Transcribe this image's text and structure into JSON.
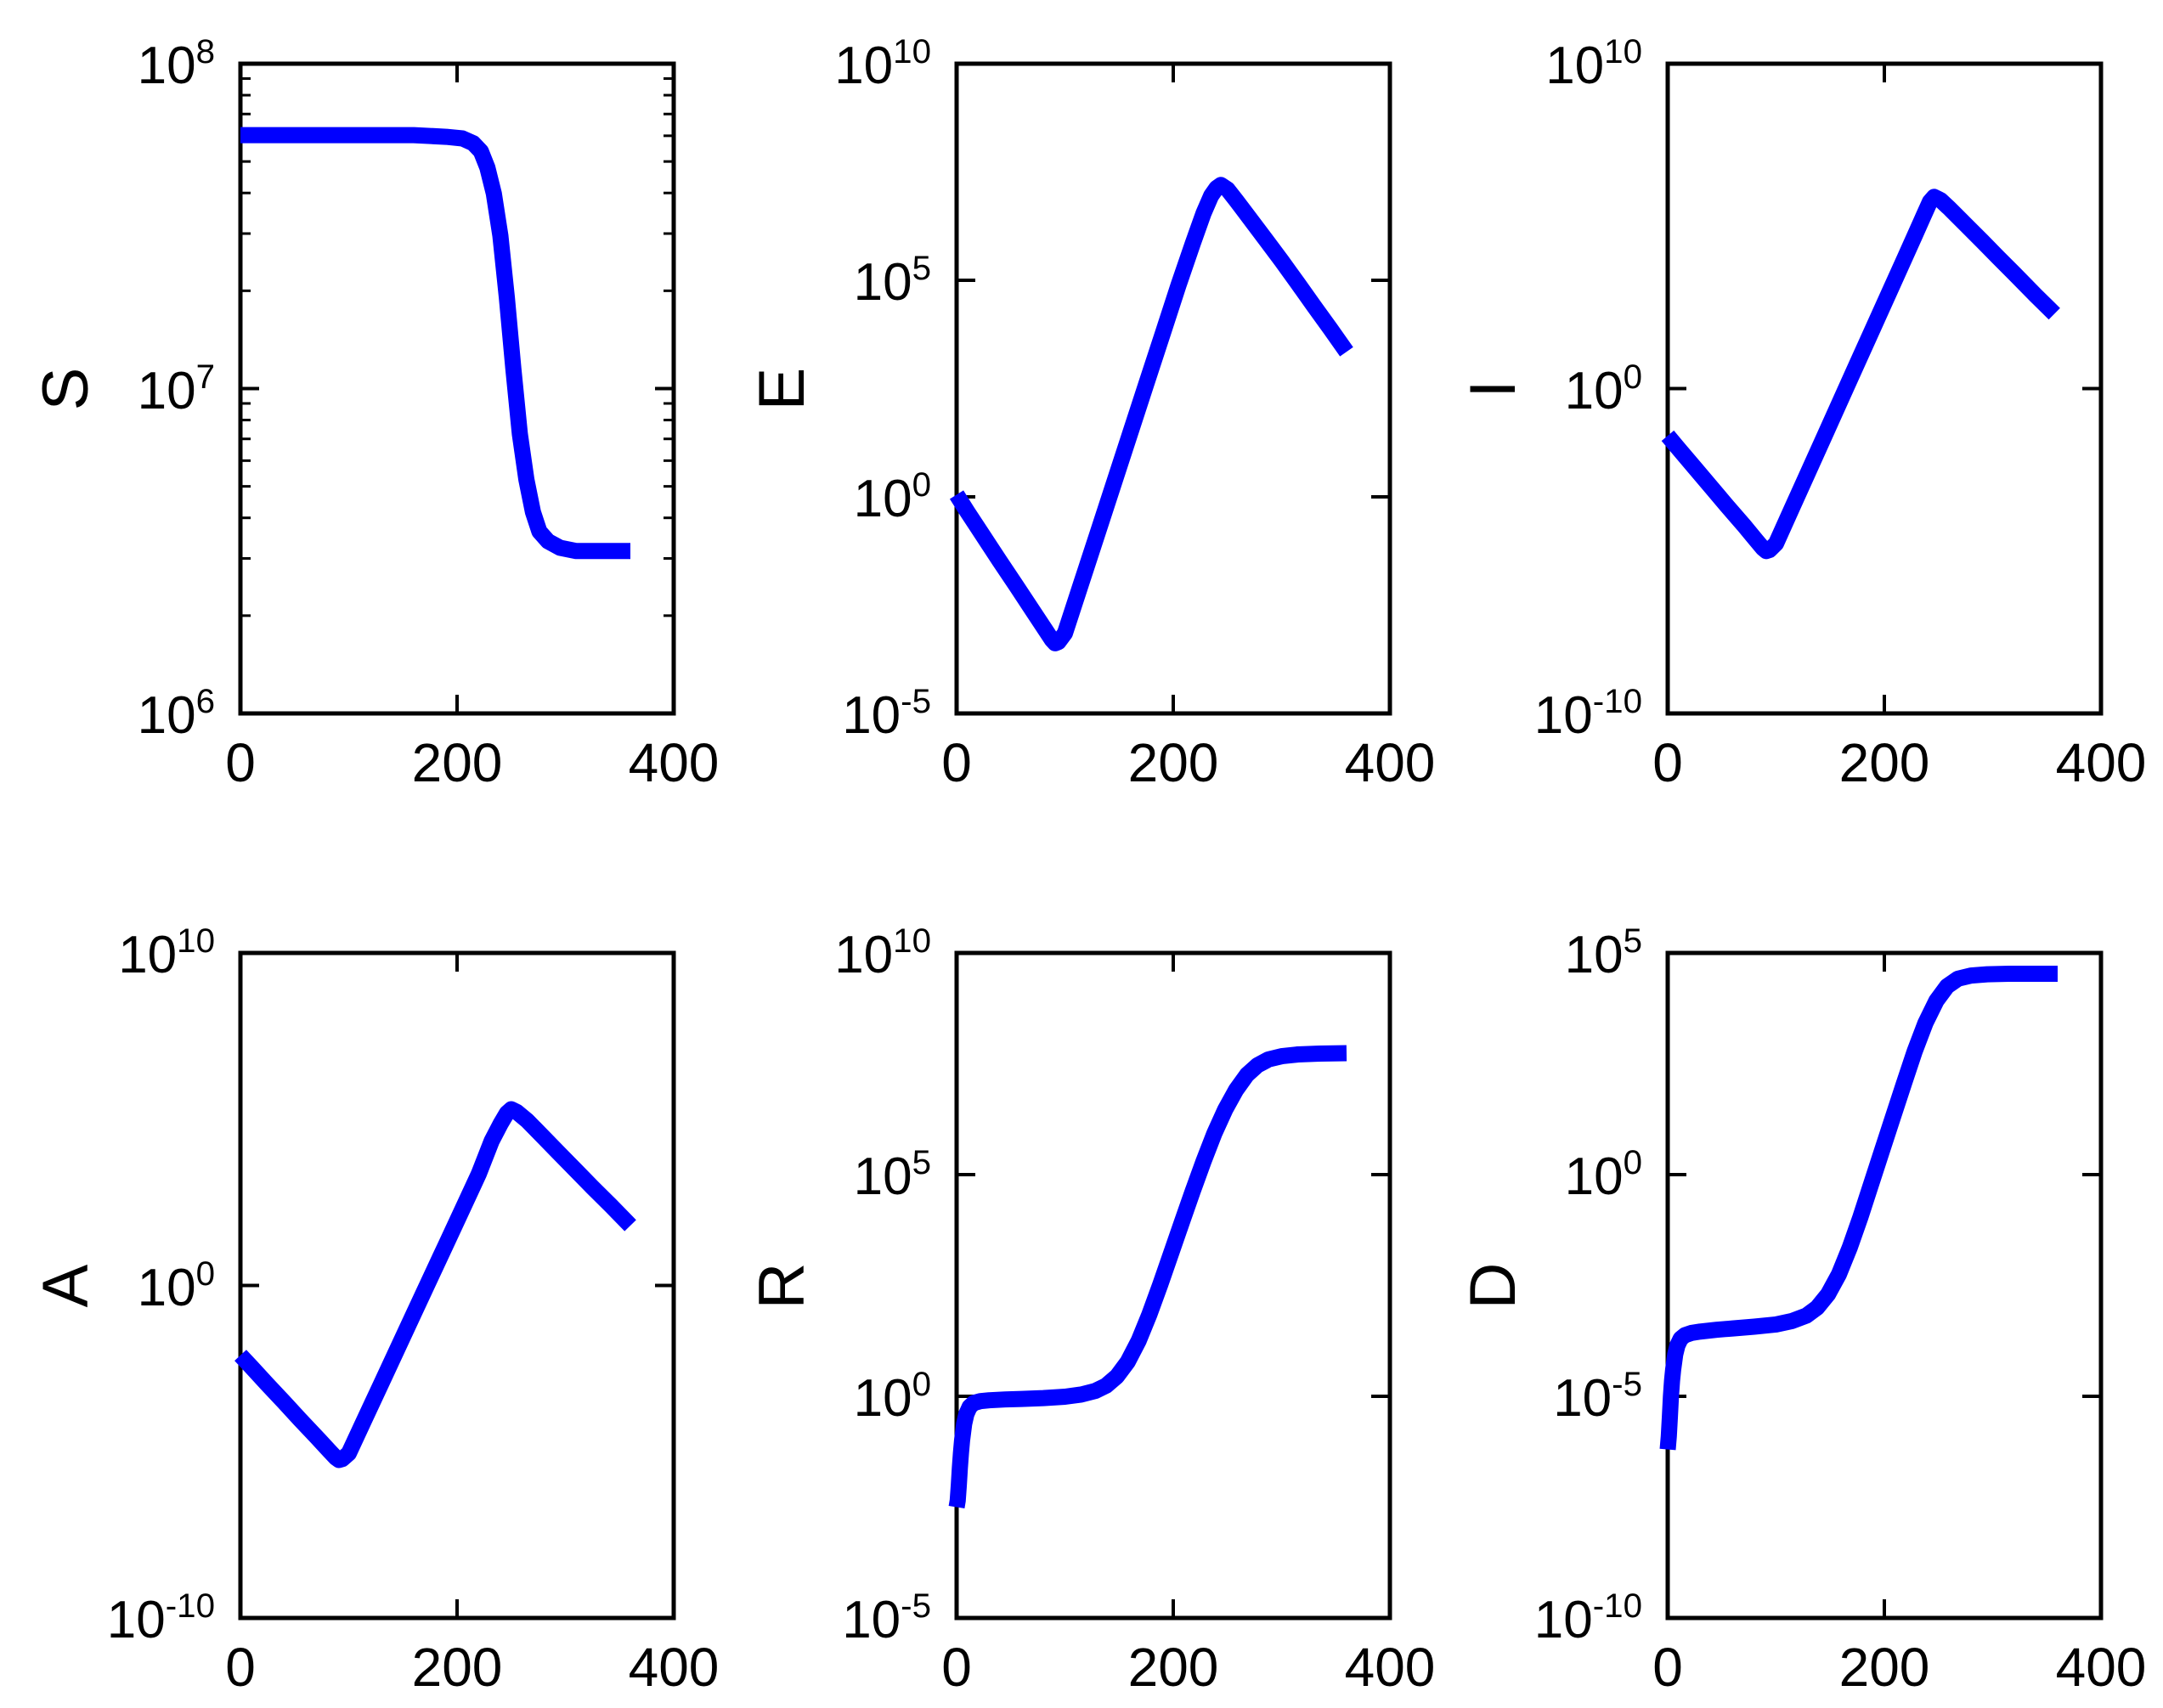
{
  "figure": {
    "background_color": "#ffffff",
    "axis_color": "#000000",
    "curve_color": "#0000ff",
    "curve_width": 19,
    "axis_line_width": 5,
    "tick_len_major": 22,
    "tick_len_minor": 12
  },
  "chart_data": [
    {
      "type": "line",
      "id": "S",
      "ylabel": "S",
      "row": 0,
      "col": 0,
      "xlim": [
        0,
        400
      ],
      "x_ticks": [
        0,
        200,
        400
      ],
      "x_tick_labels": [
        "0",
        "200",
        "400"
      ],
      "ylim_exp": [
        6,
        8
      ],
      "y_ticks_exp": [
        8,
        7,
        6
      ],
      "y_tick_labels": [
        "10^8",
        "10^7",
        "10^6"
      ],
      "minor_log_decades": [
        6,
        7
      ],
      "grid": false,
      "points": [
        [
          0,
          7.78
        ],
        [
          40,
          7.78
        ],
        [
          80,
          7.78
        ],
        [
          120,
          7.78
        ],
        [
          160,
          7.78
        ],
        [
          190,
          7.775
        ],
        [
          205,
          7.77
        ],
        [
          215,
          7.755
        ],
        [
          222,
          7.73
        ],
        [
          228,
          7.68
        ],
        [
          234,
          7.6
        ],
        [
          240,
          7.47
        ],
        [
          246,
          7.28
        ],
        [
          252,
          7.06
        ],
        [
          258,
          6.86
        ],
        [
          264,
          6.72
        ],
        [
          270,
          6.62
        ],
        [
          276,
          6.56
        ],
        [
          284,
          6.53
        ],
        [
          295,
          6.51
        ],
        [
          310,
          6.5
        ],
        [
          330,
          6.5
        ],
        [
          360,
          6.5
        ]
      ]
    },
    {
      "type": "line",
      "id": "E",
      "ylabel": "E",
      "row": 0,
      "col": 1,
      "xlim": [
        0,
        400
      ],
      "x_ticks": [
        0,
        200,
        400
      ],
      "x_tick_labels": [
        "0",
        "200",
        "400"
      ],
      "ylim_exp": [
        -5,
        10
      ],
      "y_ticks_exp": [
        10,
        5,
        0,
        -5
      ],
      "y_tick_labels": [
        "10^10",
        "10^5",
        "10^0",
        "10^-5"
      ],
      "minor_log_decades": [],
      "grid": false,
      "points": [
        [
          0,
          0.05
        ],
        [
          10,
          -0.35
        ],
        [
          25,
          -0.92
        ],
        [
          40,
          -1.49
        ],
        [
          55,
          -2.05
        ],
        [
          70,
          -2.62
        ],
        [
          82,
          -3.07
        ],
        [
          88,
          -3.3
        ],
        [
          91,
          -3.38
        ],
        [
          94,
          -3.35
        ],
        [
          100,
          -3.15
        ],
        [
          115,
          -2.0
        ],
        [
          130,
          -0.85
        ],
        [
          145,
          0.3
        ],
        [
          160,
          1.45
        ],
        [
          175,
          2.6
        ],
        [
          190,
          3.75
        ],
        [
          205,
          4.9
        ],
        [
          218,
          5.85
        ],
        [
          228,
          6.55
        ],
        [
          235,
          6.95
        ],
        [
          240,
          7.13
        ],
        [
          244,
          7.2
        ],
        [
          250,
          7.1
        ],
        [
          258,
          6.85
        ],
        [
          270,
          6.45
        ],
        [
          285,
          5.95
        ],
        [
          300,
          5.45
        ],
        [
          315,
          4.93
        ],
        [
          330,
          4.4
        ],
        [
          345,
          3.88
        ],
        [
          360,
          3.35
        ]
      ]
    },
    {
      "type": "line",
      "id": "I",
      "ylabel": "I",
      "row": 0,
      "col": 2,
      "xlim": [
        0,
        400
      ],
      "x_ticks": [
        0,
        200,
        400
      ],
      "x_tick_labels": [
        "0",
        "200",
        "400"
      ],
      "ylim_exp": [
        -10,
        10
      ],
      "y_ticks_exp": [
        10,
        0,
        -10
      ],
      "y_tick_labels": [
        "10^10",
        "10^0",
        "10^-10"
      ],
      "minor_log_decades": [],
      "grid": false,
      "points": [
        [
          0,
          -1.45
        ],
        [
          10,
          -1.85
        ],
        [
          25,
          -2.44
        ],
        [
          40,
          -3.03
        ],
        [
          55,
          -3.62
        ],
        [
          70,
          -4.2
        ],
        [
          82,
          -4.68
        ],
        [
          88,
          -4.92
        ],
        [
          91,
          -5.0
        ],
        [
          94,
          -4.97
        ],
        [
          100,
          -4.77
        ],
        [
          115,
          -3.66
        ],
        [
          130,
          -2.55
        ],
        [
          145,
          -1.44
        ],
        [
          160,
          -0.33
        ],
        [
          175,
          0.78
        ],
        [
          190,
          1.89
        ],
        [
          205,
          3.0
        ],
        [
          218,
          3.96
        ],
        [
          228,
          4.7
        ],
        [
          236,
          5.3
        ],
        [
          242,
          5.75
        ],
        [
          246,
          5.9
        ],
        [
          252,
          5.8
        ],
        [
          260,
          5.55
        ],
        [
          275,
          5.05
        ],
        [
          290,
          4.55
        ],
        [
          305,
          4.04
        ],
        [
          320,
          3.54
        ],
        [
          340,
          2.86
        ],
        [
          357,
          2.3
        ]
      ]
    },
    {
      "type": "line",
      "id": "A",
      "ylabel": "A",
      "row": 1,
      "col": 0,
      "xlim": [
        0,
        400
      ],
      "x_ticks": [
        0,
        200,
        400
      ],
      "x_tick_labels": [
        "0",
        "200",
        "400"
      ],
      "ylim_exp": [
        -10,
        10
      ],
      "y_ticks_exp": [
        10,
        0,
        -10
      ],
      "y_tick_labels": [
        "10^10",
        "10^0",
        "10^-10"
      ],
      "minor_log_decades": [],
      "grid": false,
      "points": [
        [
          0,
          -2.1
        ],
        [
          10,
          -2.45
        ],
        [
          25,
          -2.98
        ],
        [
          40,
          -3.5
        ],
        [
          55,
          -4.03
        ],
        [
          70,
          -4.55
        ],
        [
          82,
          -4.97
        ],
        [
          88,
          -5.18
        ],
        [
          91,
          -5.25
        ],
        [
          94,
          -5.22
        ],
        [
          100,
          -5.05
        ],
        [
          115,
          -4.0
        ],
        [
          130,
          -2.95
        ],
        [
          145,
          -1.9
        ],
        [
          160,
          -0.85
        ],
        [
          175,
          0.2
        ],
        [
          190,
          1.25
        ],
        [
          205,
          2.3
        ],
        [
          220,
          3.35
        ],
        [
          232,
          4.35
        ],
        [
          240,
          4.85
        ],
        [
          246,
          5.18
        ],
        [
          250,
          5.3
        ],
        [
          255,
          5.22
        ],
        [
          265,
          4.95
        ],
        [
          280,
          4.45
        ],
        [
          295,
          3.95
        ],
        [
          310,
          3.45
        ],
        [
          325,
          2.95
        ],
        [
          342,
          2.4
        ],
        [
          360,
          1.8
        ]
      ]
    },
    {
      "type": "line",
      "id": "R",
      "ylabel": "R",
      "row": 1,
      "col": 1,
      "xlim": [
        0,
        400
      ],
      "x_ticks": [
        0,
        200,
        400
      ],
      "x_tick_labels": [
        "0",
        "200",
        "400"
      ],
      "ylim_exp": [
        -5,
        10
      ],
      "y_ticks_exp": [
        10,
        5,
        0,
        -5
      ],
      "y_tick_labels": [
        "10^10",
        "10^5",
        "10^0",
        "10^-5"
      ],
      "minor_log_decades": [],
      "grid": false,
      "points": [
        [
          0,
          -2.5
        ],
        [
          1,
          -2.35
        ],
        [
          2,
          -2.0
        ],
        [
          3,
          -1.62
        ],
        [
          4,
          -1.28
        ],
        [
          5,
          -1.0
        ],
        [
          7,
          -0.62
        ],
        [
          9,
          -0.4
        ],
        [
          12,
          -0.24
        ],
        [
          16,
          -0.15
        ],
        [
          22,
          -0.11
        ],
        [
          30,
          -0.09
        ],
        [
          45,
          -0.07
        ],
        [
          60,
          -0.06
        ],
        [
          80,
          -0.04
        ],
        [
          100,
          -0.01
        ],
        [
          115,
          0.04
        ],
        [
          128,
          0.12
        ],
        [
          138,
          0.24
        ],
        [
          148,
          0.45
        ],
        [
          158,
          0.78
        ],
        [
          168,
          1.25
        ],
        [
          178,
          1.85
        ],
        [
          188,
          2.52
        ],
        [
          198,
          3.22
        ],
        [
          208,
          3.93
        ],
        [
          218,
          4.63
        ],
        [
          228,
          5.3
        ],
        [
          238,
          5.93
        ],
        [
          248,
          6.47
        ],
        [
          258,
          6.91
        ],
        [
          268,
          7.25
        ],
        [
          278,
          7.47
        ],
        [
          288,
          7.6
        ],
        [
          300,
          7.67
        ],
        [
          315,
          7.71
        ],
        [
          335,
          7.73
        ],
        [
          360,
          7.74
        ]
      ]
    },
    {
      "type": "line",
      "id": "D",
      "ylabel": "D",
      "row": 1,
      "col": 2,
      "xlim": [
        0,
        400
      ],
      "x_ticks": [
        0,
        200,
        400
      ],
      "x_tick_labels": [
        "0",
        "200",
        "400"
      ],
      "ylim_exp": [
        -10,
        5
      ],
      "y_ticks_exp": [
        5,
        0,
        -5,
        -10
      ],
      "y_tick_labels": [
        "10^5",
        "10^0",
        "10^-5",
        "10^-10"
      ],
      "minor_log_decades": [],
      "grid": false,
      "points": [
        [
          0,
          -6.2
        ],
        [
          1,
          -5.9
        ],
        [
          2,
          -5.45
        ],
        [
          3,
          -5.0
        ],
        [
          4,
          -4.65
        ],
        [
          5,
          -4.4
        ],
        [
          7,
          -4.05
        ],
        [
          9,
          -3.85
        ],
        [
          12,
          -3.7
        ],
        [
          16,
          -3.62
        ],
        [
          22,
          -3.57
        ],
        [
          30,
          -3.54
        ],
        [
          45,
          -3.5
        ],
        [
          60,
          -3.47
        ],
        [
          80,
          -3.43
        ],
        [
          100,
          -3.38
        ],
        [
          115,
          -3.3
        ],
        [
          128,
          -3.18
        ],
        [
          138,
          -3.0
        ],
        [
          148,
          -2.7
        ],
        [
          158,
          -2.25
        ],
        [
          168,
          -1.65
        ],
        [
          178,
          -0.95
        ],
        [
          188,
          -0.2
        ],
        [
          198,
          0.55
        ],
        [
          208,
          1.3
        ],
        [
          218,
          2.05
        ],
        [
          228,
          2.78
        ],
        [
          238,
          3.42
        ],
        [
          248,
          3.92
        ],
        [
          258,
          4.25
        ],
        [
          268,
          4.42
        ],
        [
          280,
          4.49
        ],
        [
          295,
          4.52
        ],
        [
          315,
          4.53
        ],
        [
          335,
          4.53
        ],
        [
          360,
          4.53
        ]
      ]
    }
  ]
}
